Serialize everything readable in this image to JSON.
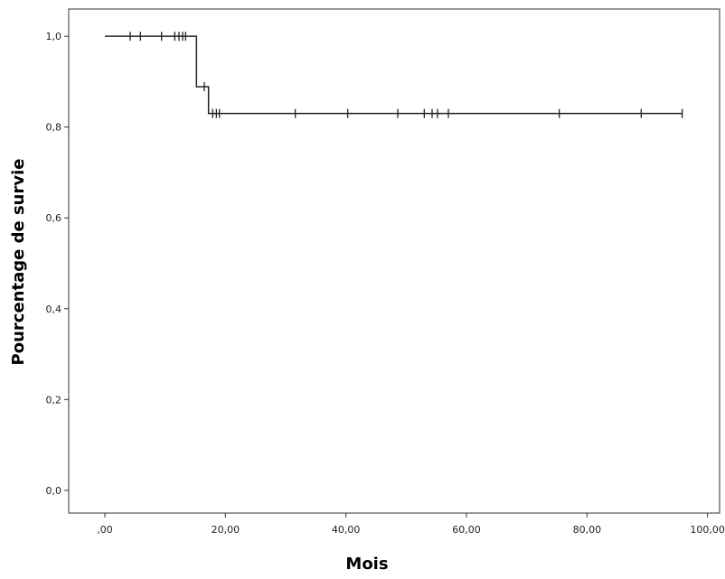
{
  "chart_data": {
    "type": "line",
    "xlabel": "Mois",
    "ylabel": "Pourcentage de survie",
    "xlim": [
      -6,
      102
    ],
    "ylim": [
      -0.05,
      1.06
    ],
    "x_ticks": [
      0,
      20,
      40,
      60,
      80,
      100
    ],
    "x_tick_labels": [
      ",00",
      "20,00",
      "40,00",
      "60,00",
      "80,00",
      "100,00"
    ],
    "y_ticks": [
      0,
      0.2,
      0.4,
      0.6,
      0.8,
      1.0
    ],
    "y_tick_labels": [
      "0,0",
      "0,2",
      "0,4",
      "0,6",
      "0,8",
      "1,0"
    ],
    "grid": false,
    "series": [
      {
        "step_points": [
          [
            0,
            1.0
          ],
          [
            15.2,
            1.0
          ],
          [
            15.2,
            0.889
          ],
          [
            17.2,
            0.889
          ],
          [
            17.2,
            0.83
          ],
          [
            95.8,
            0.83
          ]
        ],
        "censored": [
          [
            4.2,
            1.0
          ],
          [
            5.9,
            1.0
          ],
          [
            9.4,
            1.0
          ],
          [
            11.6,
            1.0
          ],
          [
            12.3,
            1.0
          ],
          [
            12.9,
            1.0
          ],
          [
            13.4,
            1.0
          ],
          [
            16.5,
            0.889
          ],
          [
            17.9,
            0.83
          ],
          [
            18.5,
            0.83
          ],
          [
            19.0,
            0.83
          ],
          [
            31.6,
            0.83
          ],
          [
            40.3,
            0.83
          ],
          [
            48.6,
            0.83
          ],
          [
            53.0,
            0.83
          ],
          [
            54.3,
            0.83
          ],
          [
            55.2,
            0.83
          ],
          [
            57.0,
            0.83
          ],
          [
            75.4,
            0.83
          ],
          [
            89.0,
            0.83
          ],
          [
            95.8,
            0.83
          ]
        ]
      }
    ]
  }
}
